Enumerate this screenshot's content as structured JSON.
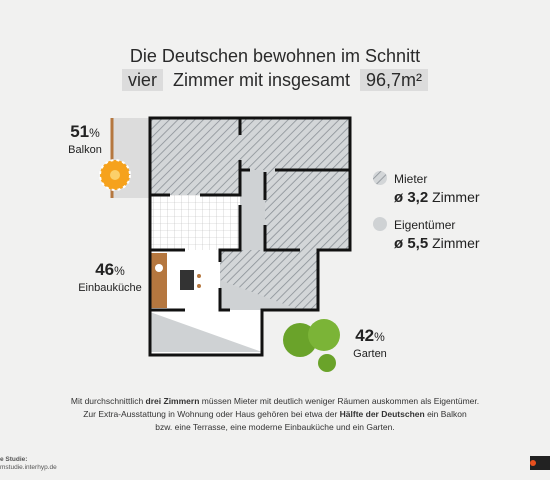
{
  "header": {
    "line1": "Die Deutschen bewohnen im Schnitt",
    "rooms": "vier",
    "middle": "Zimmer mit insgesamt",
    "area": "96,7m²"
  },
  "stats": [
    {
      "value": 51,
      "unit": "%",
      "label": "Balkon"
    },
    {
      "value": 46,
      "unit": "%",
      "label": "Einbauküche"
    },
    {
      "value": 42,
      "unit": "%",
      "label": "Garten"
    }
  ],
  "legend": [
    {
      "name": "Mieter",
      "value": "ø 3,2",
      "unit": "Zimmer"
    },
    {
      "name": "Eigentümer",
      "value": "ø 5,5",
      "unit": "Zimmer"
    }
  ],
  "text": {
    "p1a": "Mit durchschnittlich",
    "p1b": "drei Zimmern",
    "p1c": "müssen Mieter mit deutlich weniger Räumen auskommen als Eigentümer.",
    "p2a": "Zur Extra-Ausstattung in Wohnung oder Haus gehören bei etwa der",
    "p2b": "Hälfte der Deutschen",
    "p2c": "ein Balkon",
    "p3": "bzw. eine Terrasse, eine moderne Einbauküche und ein Garten."
  },
  "source": {
    "label": "e Studie:",
    "url": "mstudie.interhyp.de"
  }
}
